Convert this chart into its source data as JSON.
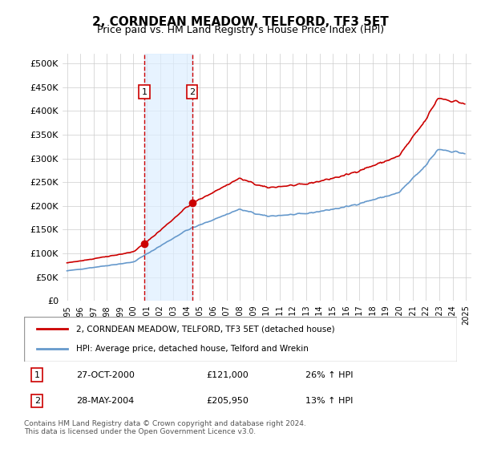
{
  "title": "2, CORNDEAN MEADOW, TELFORD, TF3 5ET",
  "subtitle": "Price paid vs. HM Land Registry's House Price Index (HPI)",
  "legend_line1": "2, CORNDEAN MEADOW, TELFORD, TF3 5ET (detached house)",
  "legend_line2": "HPI: Average price, detached house, Telford and Wrekin",
  "footer": "Contains HM Land Registry data © Crown copyright and database right 2024.\nThis data is licensed under the Open Government Licence v3.0.",
  "sale1_date": "2000-10-27",
  "sale1_label": "27-OCT-2000",
  "sale1_price": 121000,
  "sale1_price_str": "£121,000",
  "sale1_hpi": "26% ↑ HPI",
  "sale2_date": "2004-05-28",
  "sale2_label": "28-MAY-2004",
  "sale2_price": 205950,
  "sale2_price_str": "£205,950",
  "sale2_hpi": "13% ↑ HPI",
  "red_color": "#cc0000",
  "blue_color": "#6699cc",
  "shade_color": "#ddeeff",
  "ylabel_color": "#222222",
  "background_color": "#ffffff",
  "grid_color": "#cccccc",
  "ylim": [
    0,
    520000
  ],
  "yticks": [
    0,
    50000,
    100000,
    150000,
    200000,
    250000,
    300000,
    350000,
    400000,
    450000,
    500000
  ]
}
